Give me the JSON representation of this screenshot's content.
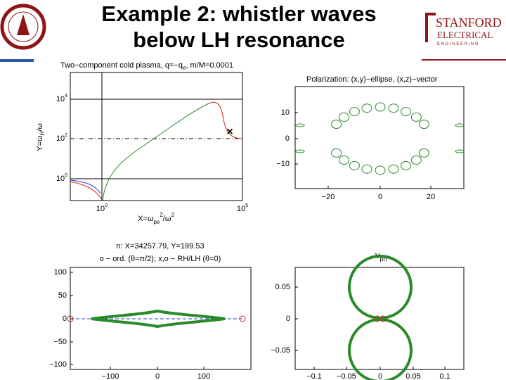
{
  "header": {
    "title": [
      "Example 2: whistler waves",
      "below LH resonance"
    ],
    "logo": {
      "name": "STANFORD",
      "dept": "ELECTRICAL",
      "sub": "E N G I N E E R I N G"
    }
  },
  "plots": [
    {
      "title": [
        "Two−component cold plasma, q=−q",
        "e",
        ", m/M=0.0001"
      ],
      "ylabel": [
        "Y=ω",
        "H",
        "/ω"
      ],
      "xlabel": [
        "X=ω",
        "pe",
        "2",
        "/ω",
        "2"
      ],
      "yticks": [
        {
          "base": "10",
          "exp": "4"
        },
        {
          "base": "10",
          "exp": "2"
        },
        {
          "base": "10",
          "exp": "0"
        }
      ],
      "xticks": [
        {
          "base": "10",
          "exp": "0"
        },
        {
          "base": "10",
          "exp": "5"
        }
      ],
      "marker": "×"
    },
    {
      "title": [
        "Polarization: (x,y)−ellipse, (x,z)−vector"
      ],
      "yticks": [
        "10",
        "0",
        "−10"
      ],
      "xticks": [
        "−20",
        "0",
        "20"
      ]
    },
    {
      "title": [
        "n: X=34257.79, Y=199.53",
        "o − ord. (θ=π/2); x,o − RH/LH (θ=0)"
      ],
      "yticks": [
        "100",
        "50",
        "0",
        "−50",
        "−100"
      ],
      "xticks": [
        "−100",
        "0",
        "100"
      ]
    },
    {
      "title": [
        "v",
        "ph"
      ],
      "yticks": [
        "0.05",
        "0",
        "−0.05"
      ],
      "xticks": [
        "−0.1",
        "−0.05",
        "0",
        "0.05",
        "0.1"
      ]
    }
  ]
}
